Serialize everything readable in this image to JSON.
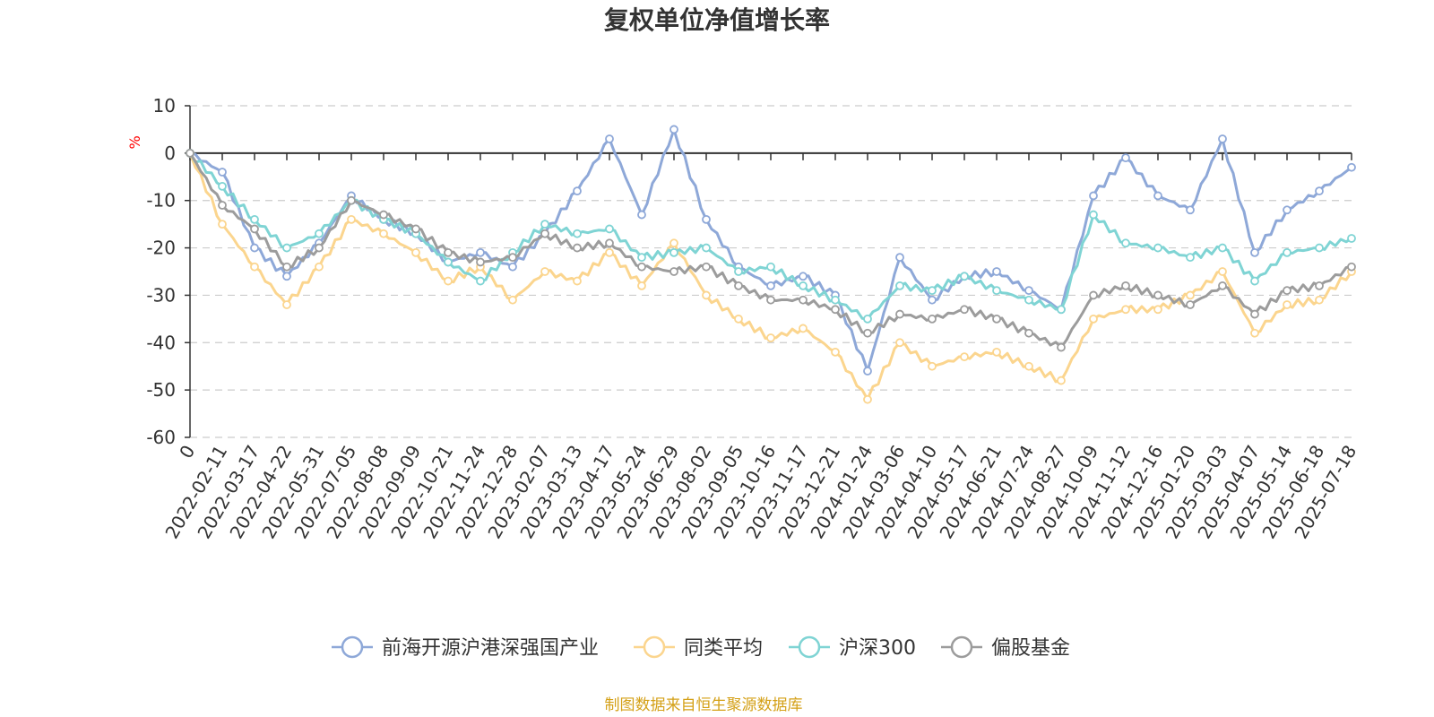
{
  "chart_data": {
    "type": "line",
    "title": "复权单位净值增长率",
    "ylabel": "%",
    "ylim": [
      -60,
      10
    ],
    "y_ticks": [
      "10",
      "0",
      "-10",
      "-20",
      "-30",
      "-40",
      "-50",
      "-60"
    ],
    "x_tick_labels": [
      "0",
      "2022-02-11",
      "2022-03-17",
      "2022-04-22",
      "2022-05-31",
      "2022-07-05",
      "2022-08-08",
      "2022-09-09",
      "2022-10-21",
      "2022-11-24",
      "2022-12-28",
      "2023-02-07",
      "2023-03-13",
      "2023-04-17",
      "2023-05-24",
      "2023-06-29",
      "2023-08-02",
      "2023-09-05",
      "2023-10-16",
      "2023-11-17",
      "2023-12-21",
      "2024-01-24",
      "2024-03-06",
      "2024-04-10",
      "2024-05-17",
      "2024-06-21",
      "2024-07-24",
      "2024-08-27",
      "2024-10-09",
      "2024-11-12",
      "2024-12-16",
      "2025-01-20",
      "2025-03-03",
      "2025-04-07",
      "2025-05-14",
      "2025-06-18",
      "2025-07-18"
    ],
    "grid": true,
    "legend_position": "bottom",
    "series": [
      {
        "name": "前海开源沪港深强国产业",
        "color": "#8ea8d8",
        "values": [
          0,
          -4,
          -20,
          -26,
          -19,
          -9,
          -14,
          -17,
          -23,
          -21,
          -24,
          -17,
          -8,
          3,
          -13,
          5,
          -14,
          -24,
          -28,
          -26,
          -30,
          -46,
          -22,
          -31,
          -26,
          -25,
          -29,
          -33,
          -9,
          -1,
          -9,
          -12,
          3,
          -21,
          -12,
          -8,
          -3
        ]
      },
      {
        "name": "同类平均",
        "color": "#fbd58e",
        "values": [
          0,
          -15,
          -24,
          -32,
          -24,
          -14,
          -17,
          -21,
          -27,
          -24,
          -31,
          -25,
          -27,
          -21,
          -28,
          -19,
          -30,
          -35,
          -39,
          -37,
          -42,
          -52,
          -40,
          -45,
          -43,
          -42,
          -45,
          -48,
          -35,
          -33,
          -33,
          -30,
          -25,
          -38,
          -32,
          -31,
          -25
        ]
      },
      {
        "name": "沪深300",
        "color": "#7fd4d4",
        "values": [
          0,
          -7,
          -14,
          -20,
          -17,
          -10,
          -14,
          -17,
          -23,
          -27,
          -21,
          -15,
          -17,
          -16,
          -22,
          -21,
          -20,
          -25,
          -24,
          -28,
          -31,
          -35,
          -28,
          -29,
          -26,
          -29,
          -31,
          -33,
          -13,
          -19,
          -20,
          -22,
          -20,
          -27,
          -21,
          -20,
          -18
        ]
      },
      {
        "name": "偏股基金",
        "color": "#9c9c9c",
        "values": [
          0,
          -11,
          -16,
          -24,
          -20,
          -10,
          -13,
          -16,
          -21,
          -23,
          -22,
          -17,
          -20,
          -19,
          -24,
          -25,
          -24,
          -28,
          -31,
          -31,
          -33,
          -38,
          -34,
          -35,
          -33,
          -35,
          -38,
          -41,
          -30,
          -28,
          -30,
          -32,
          -28,
          -34,
          -29,
          -28,
          -24
        ]
      }
    ]
  },
  "source_text": "制图数据来自恒生聚源数据库",
  "source_color": "#d4a017",
  "unit_color": "#ff0000"
}
